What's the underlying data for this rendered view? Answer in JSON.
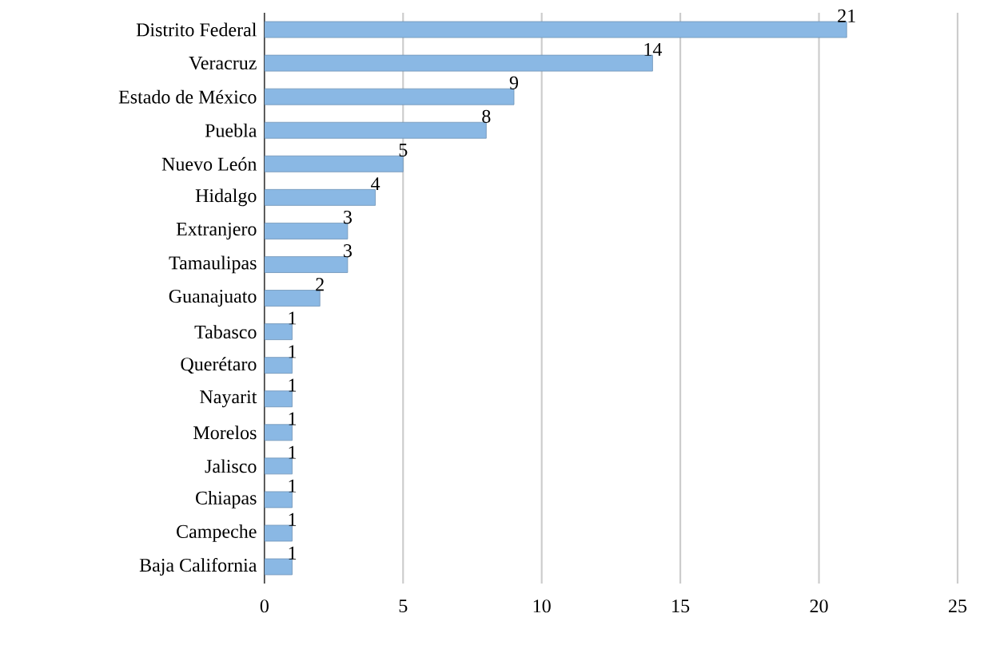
{
  "chart_data": {
    "type": "bar",
    "orientation": "horizontal",
    "categories": [
      "Distrito Federal",
      "Veracruz",
      "Estado de México",
      "Puebla",
      "Nuevo León",
      "Hidalgo",
      "Extranjero",
      "Tamaulipas",
      "Guanajuato",
      "Tabasco",
      "Querétaro",
      "Nayarit",
      "Morelos",
      "Jalisco",
      "Chiapas",
      "Campeche",
      "Baja California"
    ],
    "values": [
      21,
      14,
      9,
      8,
      5,
      4,
      3,
      3,
      2,
      1,
      1,
      1,
      1,
      1,
      1,
      1,
      1
    ],
    "color": "#8ab8e4",
    "xlim": [
      0,
      25
    ],
    "xticks": [
      0,
      5,
      10,
      15,
      20,
      25
    ],
    "grid": "x",
    "data_labels": true
  }
}
